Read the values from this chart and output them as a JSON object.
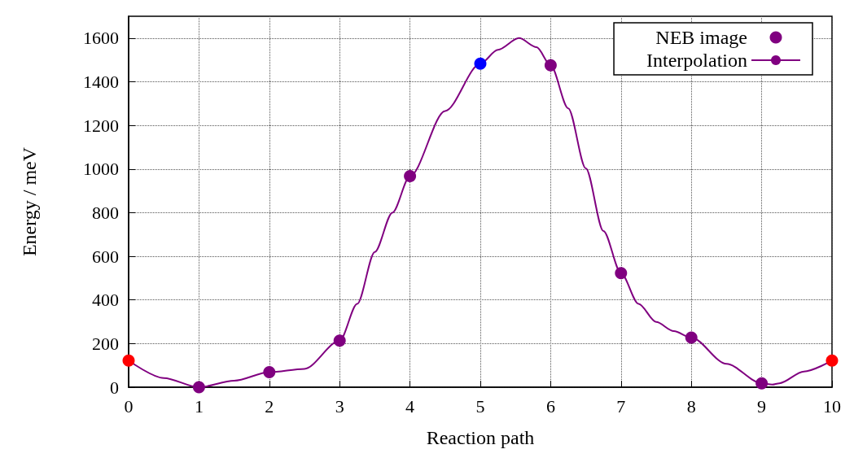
{
  "chart_data": {
    "type": "scatter",
    "xlabel": "Reaction path",
    "ylabel": "Energy / meV",
    "xlim": [
      0,
      10
    ],
    "xticks": [
      0,
      1,
      2,
      3,
      4,
      5,
      6,
      7,
      8,
      9,
      10
    ],
    "ylim": [
      0,
      1700
    ],
    "yticks": [
      0,
      200,
      400,
      600,
      800,
      1000,
      1200,
      1400,
      1600
    ],
    "grid": true,
    "legend": "top right",
    "series": [
      {
        "name": "NEB image",
        "marker": "circle",
        "color": "#800080",
        "x": [
          0,
          1,
          2,
          3,
          4,
          5,
          6,
          7,
          8,
          9,
          10
        ],
        "values": [
          122,
          0,
          69,
          213,
          967,
          1483,
          1475,
          523,
          227,
          18,
          122
        ],
        "colors": [
          "#ff0000",
          "#800080",
          "#800080",
          "#800080",
          "#800080",
          "#0000ff",
          "#800080",
          "#800080",
          "#800080",
          "#800080",
          "#ff0000"
        ]
      },
      {
        "name": "Interpolation",
        "type": "line",
        "marker": "none",
        "color": "#800080",
        "line_style": "solid",
        "x": [
          0,
          0.5,
          1,
          1.5,
          2,
          2.5,
          3,
          3.25,
          3.5,
          3.75,
          4,
          4.5,
          5,
          5.25,
          5.55,
          5.8,
          6,
          6.25,
          6.5,
          6.75,
          7,
          7.25,
          7.5,
          7.75,
          8,
          8.5,
          9,
          9.15,
          9.25,
          9.6,
          10
        ],
        "values": [
          122,
          42,
          0,
          30,
          69,
          84,
          213,
          382,
          620,
          800,
          967,
          1266,
          1483,
          1546,
          1600,
          1558,
          1475,
          1278,
          1003,
          716,
          523,
          382,
          299,
          257,
          227,
          107,
          18,
          12,
          18,
          72,
          122
        ]
      }
    ]
  }
}
